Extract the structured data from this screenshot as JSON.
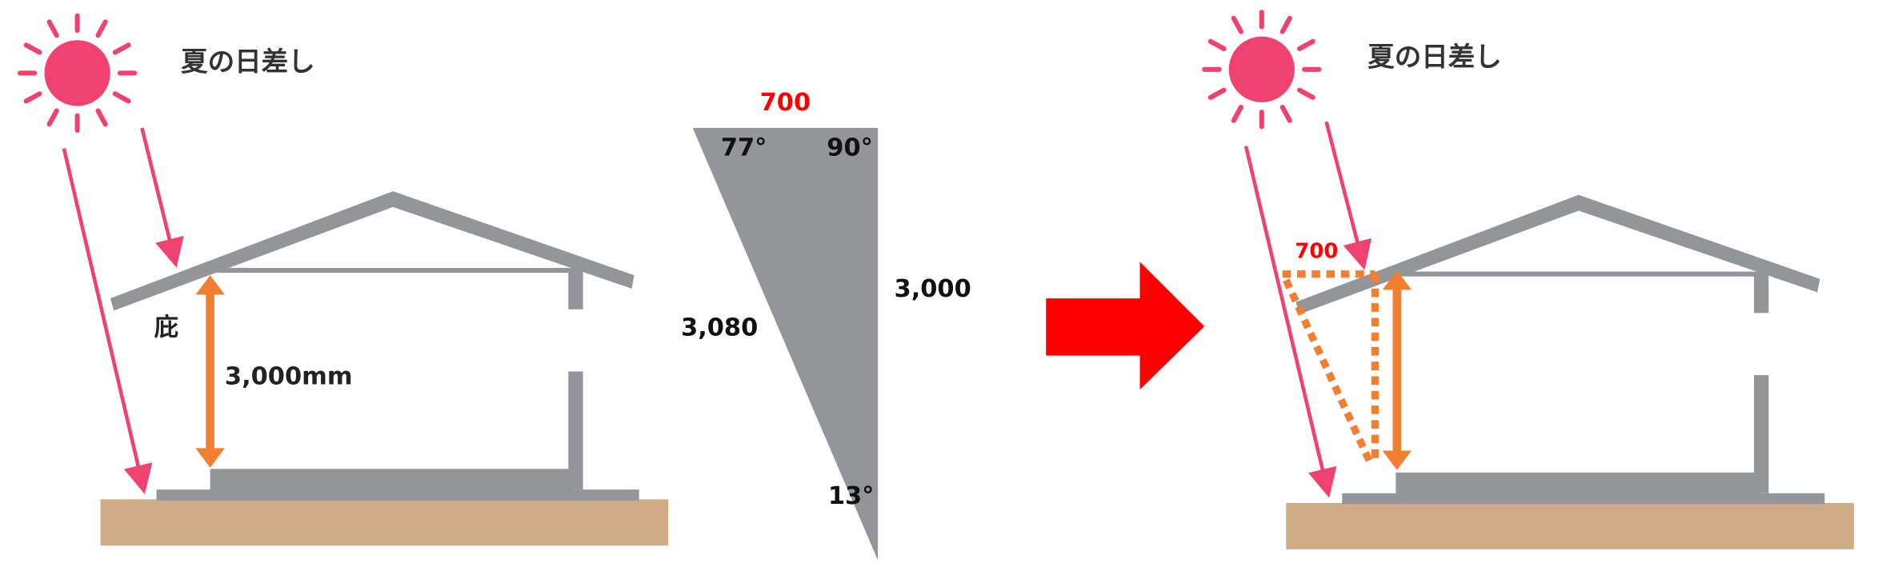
{
  "left_panel": {
    "title": "夏の日差し",
    "eave_label": "庇",
    "height_label": "3,000mm"
  },
  "triangle": {
    "top_label": "700",
    "angle_top_left": "77°",
    "angle_top_right": "90°",
    "side_right": "3,000",
    "hypotenuse": "3,080",
    "angle_bottom": "13°"
  },
  "right_panel": {
    "title": "夏の日差し",
    "overhang_label": "700"
  }
}
